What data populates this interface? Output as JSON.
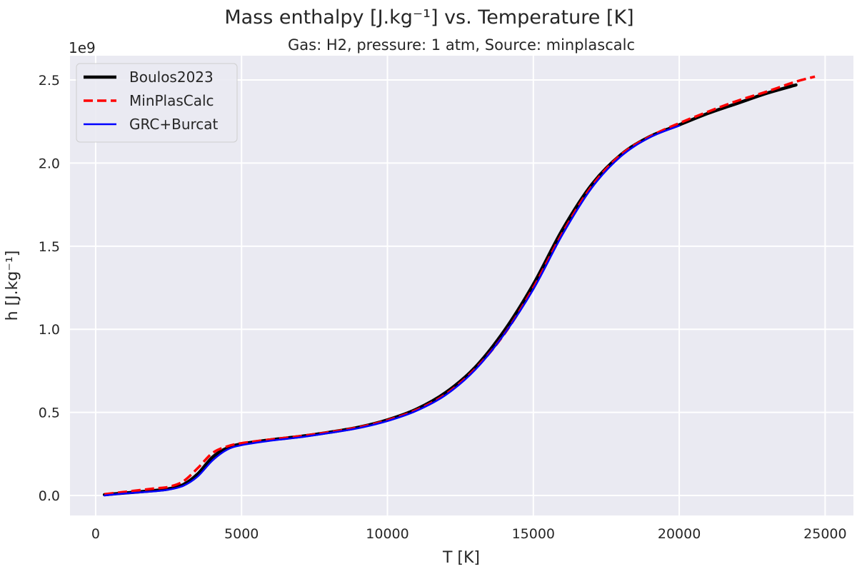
{
  "chart_data": {
    "type": "line",
    "title": "Mass enthalpy [J.kg⁻¹] vs. Temperature [K]",
    "subtitle": "Gas: H2, pressure: 1 atm, Source: minplascalc",
    "xlabel": "T [K]",
    "ylabel": "h [J.kg⁻¹]",
    "y_offset_label": "1e9",
    "xlim": [
      -880,
      25970
    ],
    "ylim": [
      -0.12,
      2.646
    ],
    "y_scale_factor": 1000000000.0,
    "xticks": [
      0,
      5000,
      10000,
      15000,
      20000,
      25000
    ],
    "xtick_labels": [
      "0",
      "5000",
      "10000",
      "15000",
      "20000",
      "25000"
    ],
    "yticks": [
      0.0,
      0.5,
      1.0,
      1.5,
      2.0,
      2.5
    ],
    "ytick_labels": [
      "0.0",
      "0.5",
      "1.0",
      "1.5",
      "2.0",
      "2.5"
    ],
    "grid": true,
    "background": "#eaeaf2",
    "legend_position": "top-left",
    "series": [
      {
        "name": "Boulos2023",
        "color": "#000000",
        "style": "solid-thick",
        "x": [
          300,
          1000,
          2000,
          2500,
          3000,
          3500,
          4000,
          4500,
          5000,
          6000,
          7000,
          8000,
          9000,
          10000,
          11000,
          12000,
          13000,
          14000,
          15000,
          16000,
          17000,
          18000,
          19000,
          20000,
          21000,
          22000,
          23000,
          24000
        ],
        "y": [
          0.005,
          0.015,
          0.03,
          0.04,
          0.065,
          0.13,
          0.23,
          0.285,
          0.31,
          0.335,
          0.355,
          0.38,
          0.41,
          0.455,
          0.52,
          0.62,
          0.77,
          0.99,
          1.27,
          1.6,
          1.87,
          2.05,
          2.16,
          2.23,
          2.3,
          2.36,
          2.42,
          2.47
        ]
      },
      {
        "name": "MinPlasCalc",
        "color": "#ff0000",
        "style": "dashed",
        "x": [
          300,
          1000,
          2000,
          2500,
          3000,
          3500,
          4000,
          4500,
          5000,
          6000,
          7000,
          8000,
          9000,
          10000,
          11000,
          12000,
          13000,
          14000,
          15000,
          16000,
          17000,
          18000,
          19000,
          20000,
          21000,
          22000,
          23000,
          24000,
          24650
        ],
        "y": [
          0.008,
          0.022,
          0.042,
          0.052,
          0.085,
          0.165,
          0.255,
          0.295,
          0.315,
          0.337,
          0.357,
          0.381,
          0.41,
          0.453,
          0.515,
          0.61,
          0.76,
          0.97,
          1.25,
          1.58,
          1.86,
          2.05,
          2.16,
          2.24,
          2.31,
          2.375,
          2.43,
          2.49,
          2.52
        ]
      },
      {
        "name": "GRC+Burcat",
        "color": "#0000ff",
        "style": "solid",
        "x": [
          300,
          1000,
          2000,
          2500,
          3000,
          3500,
          4000,
          4500,
          5000,
          6000,
          7000,
          8000,
          9000,
          10000,
          11000,
          12000,
          13000,
          14000,
          15000,
          16000,
          17000,
          18000,
          19000,
          20000
        ],
        "y": [
          0.0,
          0.012,
          0.025,
          0.035,
          0.058,
          0.115,
          0.21,
          0.275,
          0.303,
          0.33,
          0.35,
          0.376,
          0.405,
          0.448,
          0.51,
          0.605,
          0.755,
          0.97,
          1.24,
          1.57,
          1.85,
          2.04,
          2.155,
          2.225
        ]
      }
    ]
  }
}
